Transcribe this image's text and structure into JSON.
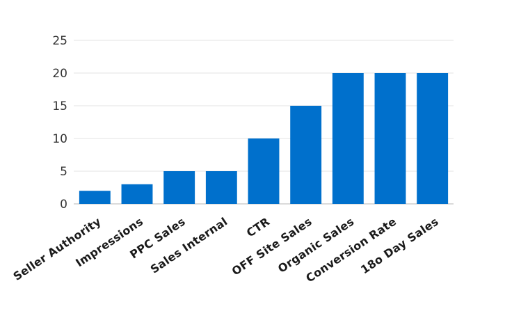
{
  "chart_data": {
    "type": "bar",
    "categories": [
      "Seller Authority",
      "Impressions",
      "PPC Sales",
      "Sales Internal",
      "CTR",
      "OFF Site Sales",
      "Organic Sales",
      "Conversion Rate",
      "18o Day Sales"
    ],
    "values": [
      2,
      3,
      5,
      5,
      10,
      15,
      20,
      20,
      20
    ],
    "title": "",
    "xlabel": "",
    "ylabel": "",
    "ylim": [
      0,
      25
    ],
    "yticks": [
      0,
      5,
      10,
      15,
      20,
      25
    ],
    "grid": true,
    "legend": "none",
    "bar_color": "#0070cc"
  }
}
